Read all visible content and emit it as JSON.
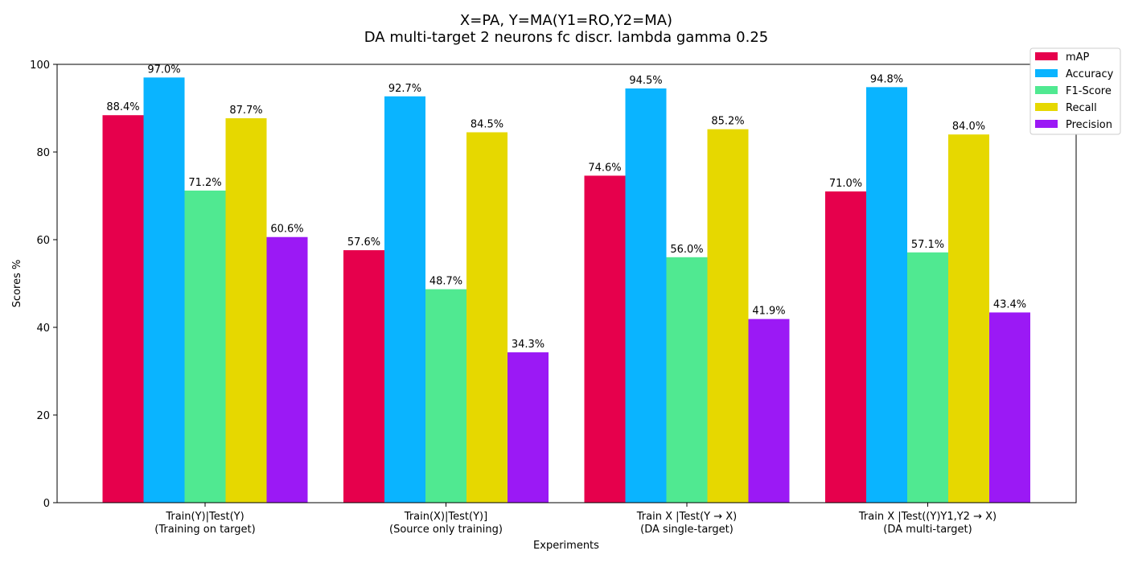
{
  "chart_data": {
    "type": "bar",
    "title": "X=PA, Y=MA(Y1=RO,Y2=MA)",
    "subtitle": "DA multi-target 2 neurons fc discr. lambda gamma 0.25",
    "xlabel": "Experiments",
    "ylabel": "Scores %",
    "ylim": [
      0,
      100
    ],
    "yticks": [
      0,
      20,
      40,
      60,
      80,
      100
    ],
    "grid": false,
    "legend_position": "top-right",
    "categories": [
      [
        "Train(Y)|Test(Y)",
        "(Training on target)"
      ],
      [
        "Train(X)|Test(Y)]",
        "(Source only training)"
      ],
      [
        "Train X |Test(Y → X)",
        "(DA single-target)"
      ],
      [
        "Train X |Test((Y)Y1,Y2 → X)",
        "(DA multi-target)"
      ]
    ],
    "series": [
      {
        "name": "mAP",
        "color": "#e6004c",
        "values": [
          88.4,
          57.6,
          74.6,
          71.0
        ]
      },
      {
        "name": "Accuracy",
        "color": "#0ab4ff",
        "values": [
          97.0,
          92.7,
          94.5,
          94.8
        ]
      },
      {
        "name": "F1-Score",
        "color": "#50e991",
        "values": [
          71.2,
          48.7,
          56.0,
          57.1
        ]
      },
      {
        "name": "Recall",
        "color": "#e6d800",
        "values": [
          87.7,
          84.5,
          85.2,
          84.0
        ]
      },
      {
        "name": "Precision",
        "color": "#9b19f5",
        "values": [
          60.6,
          34.3,
          41.9,
          43.4
        ]
      }
    ],
    "value_format_suffix": "%"
  }
}
